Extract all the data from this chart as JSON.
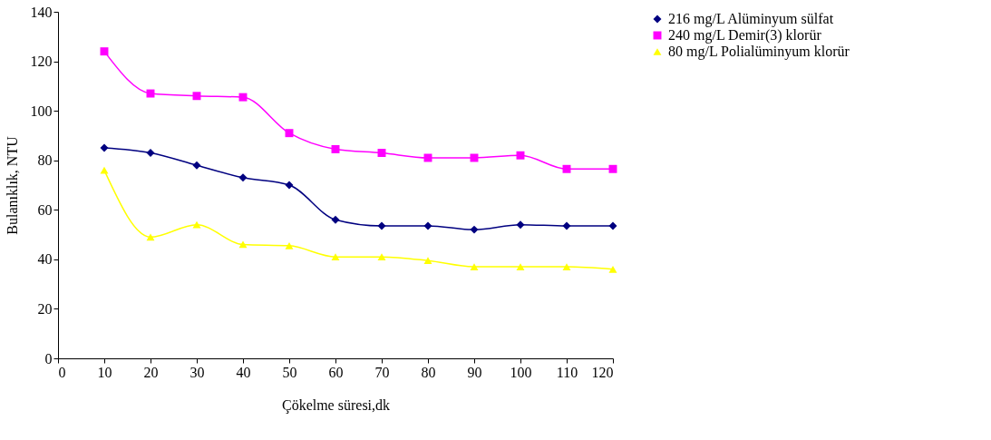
{
  "chart_data": {
    "type": "line",
    "xlabel": "Çökelme süresi,dk",
    "ylabel": "Bulanıklık, NTU",
    "x": [
      10,
      20,
      30,
      40,
      50,
      60,
      70,
      80,
      90,
      100,
      110,
      120
    ],
    "series": [
      {
        "name": "216 mg/L Alüminyum sülfat",
        "color": "#000080",
        "marker": "diamond",
        "values": [
          85,
          83,
          78,
          73,
          70,
          56,
          53.5,
          53.5,
          52,
          54,
          53.5,
          53.5
        ]
      },
      {
        "name": "240 mg/L Demir(3) klorür",
        "color": "#ff00ff",
        "marker": "square",
        "values": [
          124,
          107,
          106,
          105.5,
          91,
          84.5,
          83,
          81,
          81,
          82,
          76.5,
          76.5
        ]
      },
      {
        "name": "80 mg/L Polialüminyum klorür",
        "color": "#ffff00",
        "marker": "triangle",
        "values": [
          76,
          49,
          54,
          46,
          45.5,
          41,
          41,
          39.5,
          37,
          37,
          37,
          36
        ]
      }
    ],
    "xlim": [
      0,
      120
    ],
    "xticks": [
      0,
      10,
      20,
      30,
      40,
      50,
      60,
      70,
      80,
      90,
      100,
      110,
      120
    ],
    "ylim": [
      0,
      140
    ],
    "yticks": [
      0,
      20,
      40,
      60,
      80,
      100,
      120,
      140
    ],
    "grid": false,
    "legend": "right",
    "line_style": "solid"
  }
}
